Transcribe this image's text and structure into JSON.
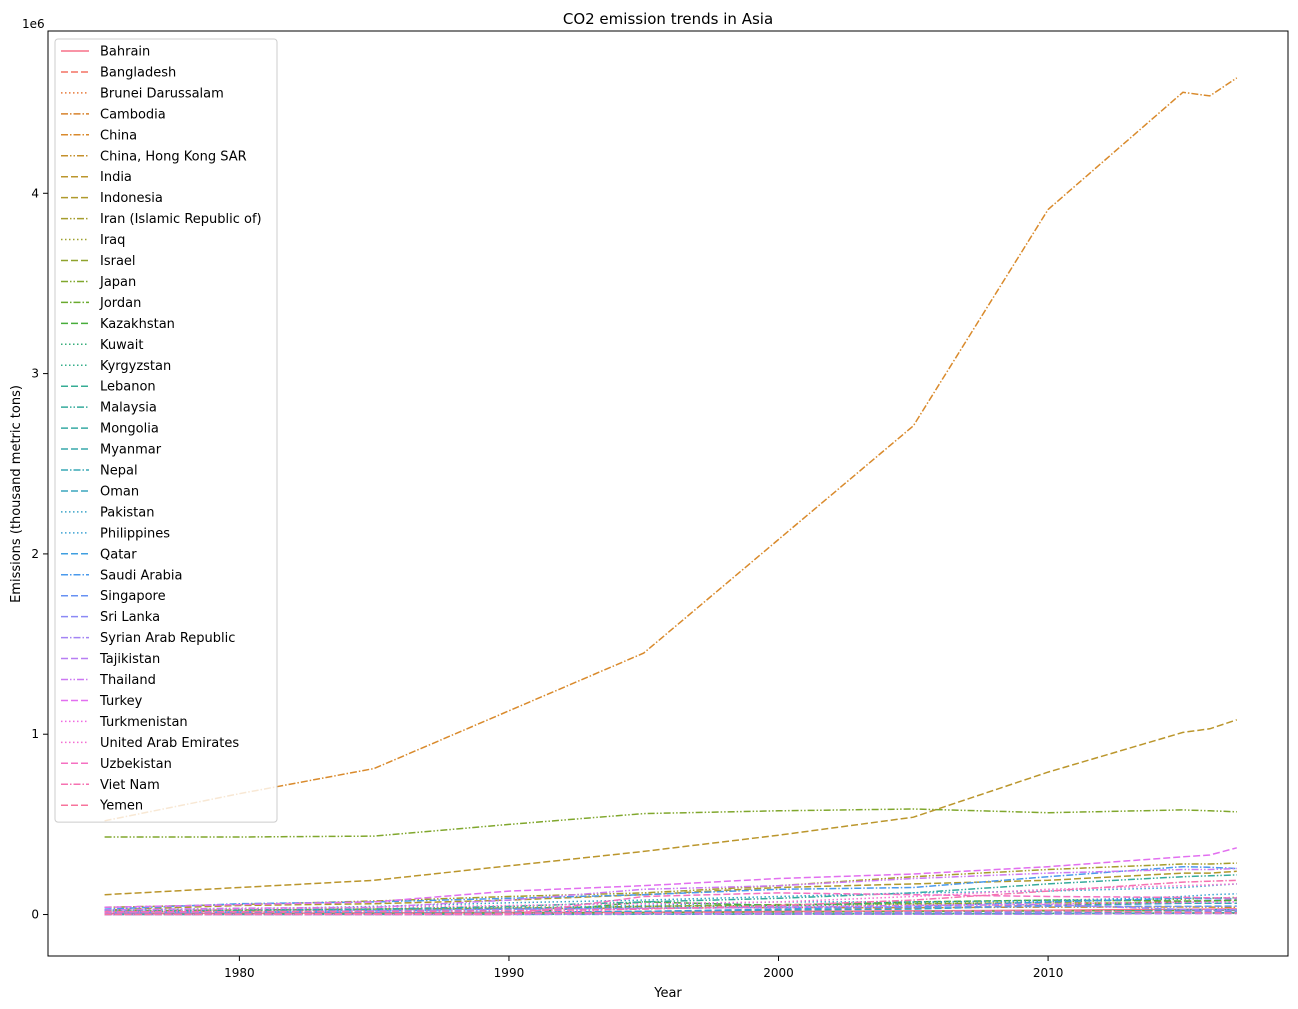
{
  "chart_data": {
    "type": "line",
    "title": "CO2 emission trends in Asia",
    "xlabel": "Year",
    "ylabel": "Emissions (thousand metric tons)",
    "y_offset_label": "1e6",
    "xlim": [
      1972.9,
      2018.9
    ],
    "ylim": [
      -230000,
      4900000
    ],
    "x_ticks": [
      1980,
      1990,
      2000,
      2010
    ],
    "x_tick_labels": [
      "1980",
      "1990",
      "2000",
      "2010"
    ],
    "y_ticks": [
      0,
      1000000,
      2000000,
      3000000,
      4000000
    ],
    "y_tick_labels": [
      "0",
      "1",
      "2",
      "3",
      "4"
    ],
    "legend_position": "upper left",
    "grid": false,
    "x": [
      1975,
      1980,
      1985,
      1990,
      1995,
      2000,
      2005,
      2010,
      2015,
      2016,
      2017
    ],
    "series": [
      {
        "name": "Bahrain",
        "color": "#f77189",
        "dash": "solid",
        "values": [
          5000,
          7000,
          9000,
          11000,
          13000,
          17000,
          20000,
          24000,
          29000,
          30000,
          31000
        ]
      },
      {
        "name": "Bangladesh",
        "color": "#f47264",
        "dash": "dashed",
        "values": [
          3000,
          5000,
          7000,
          12000,
          17000,
          23000,
          36000,
          52000,
          72000,
          75000,
          80000
        ]
      },
      {
        "name": "Brunei Darussalam",
        "color": "#e8793a",
        "dash": "dotted",
        "values": [
          3000,
          4000,
          5000,
          5000,
          6000,
          6000,
          6000,
          7000,
          6000,
          6000,
          7000
        ]
      },
      {
        "name": "Cambodia",
        "color": "#d8822c",
        "dash": "dashdot",
        "values": [
          500,
          500,
          500,
          1000,
          2000,
          2000,
          3000,
          4000,
          7000,
          8000,
          9000
        ]
      },
      {
        "name": "China",
        "color": "#d98a2c",
        "dash": "dashdot",
        "values": [
          520000,
          670000,
          810000,
          1130000,
          1450000,
          2080000,
          2710000,
          3910000,
          4560000,
          4540000,
          4640000
        ]
      },
      {
        "name": "China, Hong Kong SAR",
        "color": "#c4902c",
        "dash": "dashdotdot",
        "values": [
          14000,
          19000,
          26000,
          33000,
          35000,
          39000,
          38000,
          41000,
          42000,
          41000,
          40000
        ]
      },
      {
        "name": "India",
        "color": "#bb962c",
        "dash": "dashed",
        "values": [
          110000,
          150000,
          190000,
          270000,
          350000,
          440000,
          540000,
          790000,
          1010000,
          1030000,
          1080000
        ]
      },
      {
        "name": "Indonesia",
        "color": "#b09a2c",
        "dash": "dashed",
        "values": [
          25000,
          50000,
          60000,
          80000,
          110000,
          150000,
          170000,
          190000,
          230000,
          230000,
          240000
        ]
      },
      {
        "name": "Iran (Islamic Republic of)",
        "color": "#a59d2d",
        "dash": "dashdotdot",
        "values": [
          40000,
          55000,
          75000,
          100000,
          120000,
          160000,
          210000,
          250000,
          280000,
          280000,
          285000
        ]
      },
      {
        "name": "Iraq",
        "color": "#9da02d",
        "dash": "dotted",
        "values": [
          15000,
          25000,
          30000,
          40000,
          45000,
          50000,
          55000,
          70000,
          85000,
          90000,
          95000
        ]
      },
      {
        "name": "Israel",
        "color": "#8fa32d",
        "dash": "dashed",
        "values": [
          20000,
          25000,
          30000,
          35000,
          45000,
          55000,
          60000,
          65000,
          62000,
          62000,
          63000
        ]
      },
      {
        "name": "Japan",
        "color": "#80a72d",
        "dash": "dashdotdot",
        "values": [
          430000,
          430000,
          435000,
          500000,
          560000,
          575000,
          585000,
          565000,
          580000,
          575000,
          570000
        ]
      },
      {
        "name": "Jordan",
        "color": "#6aaa2e",
        "dash": "dashdot",
        "values": [
          1500,
          3000,
          6000,
          9000,
          11000,
          14000,
          17000,
          20000,
          22000,
          23000,
          24000
        ]
      },
      {
        "name": "Kazakhstan",
        "color": "#48ad3b",
        "dash": "dashed",
        "values": [
          0,
          0,
          0,
          0,
          70000,
          50000,
          70000,
          80000,
          75000,
          76000,
          78000
        ]
      },
      {
        "name": "Kuwait",
        "color": "#36ad7a",
        "dash": "dotted",
        "values": [
          20000,
          28000,
          30000,
          35000,
          40000,
          50000,
          65000,
          80000,
          90000,
          92000,
          93000
        ]
      },
      {
        "name": "Kyrgyzstan",
        "color": "#34ae8a",
        "dash": "dotted",
        "values": [
          0,
          0,
          0,
          0,
          4000,
          4000,
          5000,
          6000,
          9000,
          9000,
          9000
        ]
      },
      {
        "name": "Lebanon",
        "color": "#35ac94",
        "dash": "dashed",
        "values": [
          5000,
          6000,
          7000,
          8000,
          11000,
          14000,
          15000,
          18000,
          21000,
          21000,
          22000
        ]
      },
      {
        "name": "Malaysia",
        "color": "#36ab9c",
        "dash": "dashdotdot",
        "values": [
          15000,
          25000,
          30000,
          45000,
          70000,
          90000,
          120000,
          170000,
          210000,
          215000,
          220000
        ]
      },
      {
        "name": "Mongolia",
        "color": "#37aaa4",
        "dash": "dashed",
        "values": [
          4000,
          7000,
          9000,
          10000,
          8000,
          8000,
          9000,
          10000,
          12000,
          13000,
          14000
        ]
      },
      {
        "name": "Myanmar",
        "color": "#38a9ac",
        "dash": "dashed",
        "values": [
          3000,
          4000,
          5000,
          4000,
          7000,
          9000,
          10000,
          12000,
          25000,
          26000,
          27000
        ]
      },
      {
        "name": "Nepal",
        "color": "#39a8b5",
        "dash": "dashdot",
        "values": [
          200,
          300,
          500,
          700,
          1500,
          3000,
          3000,
          5000,
          8000,
          9000,
          11000
        ]
      },
      {
        "name": "Oman",
        "color": "#3aa6bd",
        "dash": "dashed",
        "values": [
          3000,
          6000,
          10000,
          13000,
          18000,
          25000,
          30000,
          50000,
          62000,
          62000,
          63000
        ]
      },
      {
        "name": "Pakistan",
        "color": "#3ba4c8",
        "dash": "dotted",
        "values": [
          20000,
          30000,
          45000,
          65000,
          80000,
          100000,
          120000,
          130000,
          150000,
          160000,
          170000
        ]
      },
      {
        "name": "Philippines",
        "color": "#3da2d3",
        "dash": "dotted",
        "values": [
          25000,
          30000,
          25000,
          35000,
          50000,
          70000,
          70000,
          75000,
          100000,
          110000,
          115000
        ]
      },
      {
        "name": "Qatar",
        "color": "#3f9fe0",
        "dash": "dashed",
        "values": [
          5000,
          8000,
          10000,
          12000,
          17000,
          30000,
          45000,
          70000,
          90000,
          88000,
          87000
        ]
      },
      {
        "name": "Saudi Arabia",
        "color": "#4a9aec",
        "dash": "dashdot",
        "values": [
          30000,
          60000,
          70000,
          90000,
          110000,
          140000,
          150000,
          210000,
          265000,
          262000,
          255000
        ]
      },
      {
        "name": "Singapore",
        "color": "#6791f3",
        "dash": "dashed",
        "values": [
          10000,
          15000,
          20000,
          30000,
          35000,
          40000,
          40000,
          45000,
          45000,
          46000,
          47000
        ]
      },
      {
        "name": "Sri Lanka",
        "color": "#8b89f5",
        "dash": "dashed",
        "values": [
          2000,
          3000,
          3000,
          3000,
          5000,
          10000,
          12000,
          13000,
          18000,
          20000,
          21000
        ]
      },
      {
        "name": "Syrian Arab Republic",
        "color": "#a384f4",
        "dash": "dashdot",
        "values": [
          10000,
          15000,
          20000,
          28000,
          33000,
          42000,
          50000,
          55000,
          28000,
          27000,
          27000
        ]
      },
      {
        "name": "Tajikistan",
        "color": "#b77ef3",
        "dash": "dashed",
        "values": [
          0,
          0,
          0,
          0,
          3000,
          2000,
          2000,
          2000,
          5000,
          5000,
          5000
        ]
      },
      {
        "name": "Thailand",
        "color": "#cc78f2",
        "dash": "dashdotdot",
        "values": [
          25000,
          35000,
          40000,
          80000,
          140000,
          160000,
          200000,
          230000,
          250000,
          250000,
          255000
        ]
      },
      {
        "name": "Turkey",
        "color": "#e26ff0",
        "dash": "dashed",
        "values": [
          40000,
          55000,
          70000,
          130000,
          160000,
          200000,
          225000,
          265000,
          320000,
          330000,
          370000
        ]
      },
      {
        "name": "Turkmenistan",
        "color": "#f069e1",
        "dash": "dotted",
        "values": [
          0,
          0,
          0,
          0,
          35000,
          38000,
          50000,
          60000,
          68000,
          69000,
          70000
        ]
      },
      {
        "name": "United Arab Emirates",
        "color": "#f36dd1",
        "dash": "dotted",
        "values": [
          12000,
          30000,
          40000,
          50000,
          60000,
          70000,
          100000,
          140000,
          160000,
          165000,
          170000
        ]
      },
      {
        "name": "Uzbekistan",
        "color": "#f570c2",
        "dash": "dashed",
        "values": [
          0,
          0,
          0,
          0,
          100000,
          120000,
          110000,
          100000,
          95000,
          93000,
          92000
        ]
      },
      {
        "name": "Viet Nam",
        "color": "#f672b1",
        "dash": "dashdot",
        "values": [
          15000,
          15000,
          17000,
          20000,
          30000,
          50000,
          80000,
          130000,
          180000,
          185000,
          190000
        ]
      },
      {
        "name": "Yemen",
        "color": "#f7749c",
        "dash": "dashed",
        "values": [
          1000,
          3000,
          5000,
          8000,
          10000,
          15000,
          20000,
          22000,
          12000,
          11000,
          10000
        ]
      }
    ]
  }
}
